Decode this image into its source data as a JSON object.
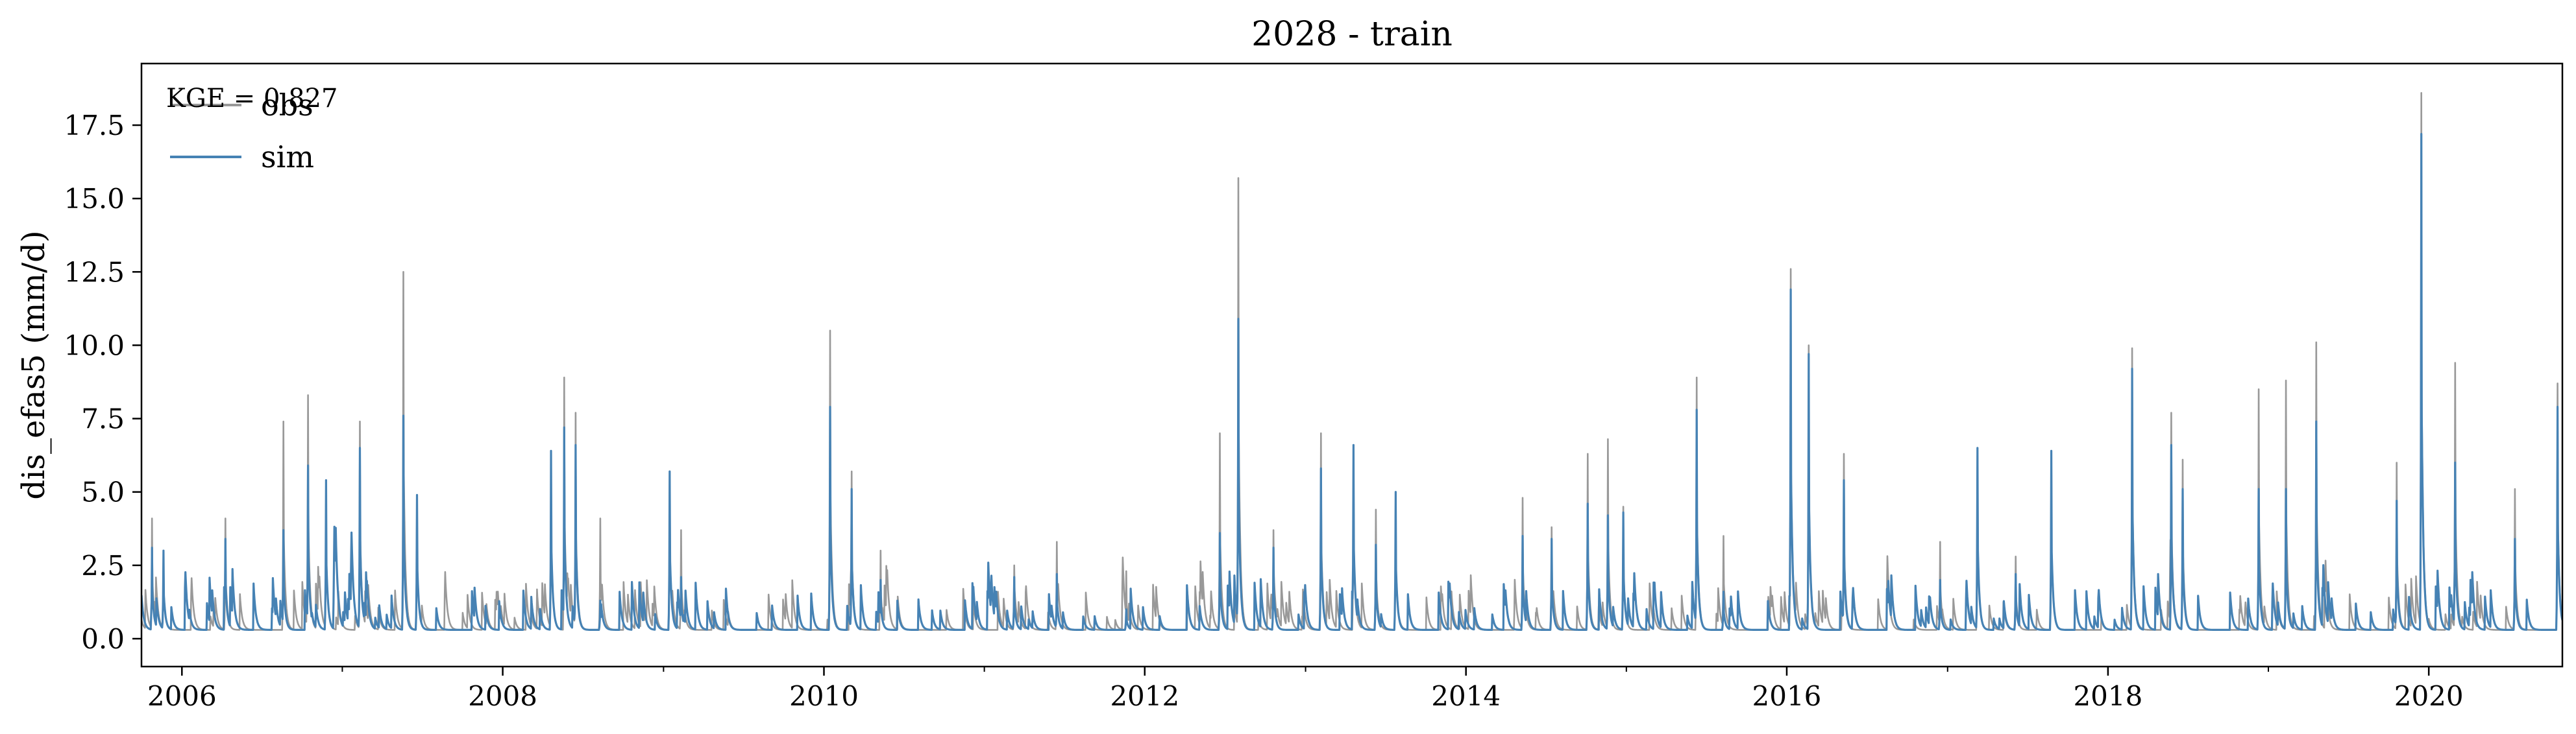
{
  "chart_data": {
    "type": "line",
    "title": "2028 - train",
    "xlabel": "",
    "ylabel": "dis_efas5 (mm/d)",
    "annotation": "KGE = 0.827",
    "xlim": [
      "2005-10-01",
      "2020-10-31"
    ],
    "ylim": [
      -0.95,
      19.6
    ],
    "x_ticks": [
      "2006",
      "2008",
      "2010",
      "2012",
      "2014",
      "2016",
      "2018",
      "2020"
    ],
    "y_ticks": [
      "0.0",
      "2.5",
      "5.0",
      "7.5",
      "10.0",
      "12.5",
      "15.0",
      "17.5"
    ],
    "legend": {
      "position": "top-left",
      "entries": [
        "obs",
        "sim"
      ]
    },
    "grid": false,
    "colors": {
      "obs": "#999999",
      "sim": "#4682b4"
    },
    "baseflow": 0.3,
    "series": [
      {
        "name": "obs",
        "peaks": [
          [
            "2005-10-25",
            4.1
          ],
          [
            "2005-11-20",
            3.0
          ],
          [
            "2006-04-10",
            4.1
          ],
          [
            "2006-08-20",
            7.4
          ],
          [
            "2006-10-15",
            8.3
          ],
          [
            "2006-11-25",
            5.4
          ],
          [
            "2007-02-10",
            7.4
          ],
          [
            "2007-05-20",
            12.5
          ],
          [
            "2007-06-20",
            4.9
          ],
          [
            "2008-04-20",
            6.4
          ],
          [
            "2008-05-20",
            8.9
          ],
          [
            "2008-06-15",
            7.7
          ],
          [
            "2008-08-10",
            4.1
          ],
          [
            "2009-01-15",
            5.7
          ],
          [
            "2009-02-10",
            3.7
          ],
          [
            "2010-01-15",
            10.5
          ],
          [
            "2010-03-05",
            5.7
          ],
          [
            "2010-05-10",
            3.0
          ],
          [
            "2011-03-10",
            2.5
          ],
          [
            "2011-06-15",
            3.3
          ],
          [
            "2011-11-20",
            2.3
          ],
          [
            "2012-06-20",
            7.0
          ],
          [
            "2012-08-01",
            15.7
          ],
          [
            "2012-10-20",
            3.7
          ],
          [
            "2013-02-05",
            7.0
          ],
          [
            "2013-04-20",
            6.6
          ],
          [
            "2013-06-10",
            4.4
          ],
          [
            "2013-07-25",
            5.0
          ],
          [
            "2014-05-10",
            4.8
          ],
          [
            "2014-07-15",
            3.8
          ],
          [
            "2014-10-05",
            6.3
          ],
          [
            "2014-11-20",
            6.8
          ],
          [
            "2014-12-25",
            4.5
          ],
          [
            "2015-06-10",
            8.9
          ],
          [
            "2015-08-10",
            3.5
          ],
          [
            "2016-01-10",
            12.6
          ],
          [
            "2016-02-20",
            10.0
          ],
          [
            "2016-05-10",
            6.3
          ],
          [
            "2016-12-15",
            3.3
          ],
          [
            "2017-03-10",
            6.5
          ],
          [
            "2017-06-05",
            2.8
          ],
          [
            "2017-08-25",
            6.4
          ],
          [
            "2018-02-25",
            9.9
          ],
          [
            "2018-05-25",
            7.7
          ],
          [
            "2018-06-20",
            6.1
          ],
          [
            "2018-12-10",
            8.5
          ],
          [
            "2019-02-10",
            8.8
          ],
          [
            "2019-04-20",
            10.1
          ],
          [
            "2019-10-20",
            6.0
          ],
          [
            "2019-12-15",
            18.6
          ],
          [
            "2020-03-01",
            9.4
          ],
          [
            "2020-07-15",
            5.1
          ],
          [
            "2020-10-20",
            8.7
          ]
        ]
      },
      {
        "name": "sim",
        "peaks": [
          [
            "2005-10-25",
            3.1
          ],
          [
            "2005-11-20",
            3.0
          ],
          [
            "2006-04-10",
            3.4
          ],
          [
            "2006-08-20",
            3.7
          ],
          [
            "2006-10-15",
            5.9
          ],
          [
            "2006-11-25",
            5.4
          ],
          [
            "2007-02-10",
            6.5
          ],
          [
            "2007-05-20",
            7.6
          ],
          [
            "2007-06-20",
            4.9
          ],
          [
            "2008-04-20",
            6.4
          ],
          [
            "2008-05-20",
            7.2
          ],
          [
            "2008-06-15",
            6.6
          ],
          [
            "2008-08-10",
            1.3
          ],
          [
            "2009-01-15",
            5.7
          ],
          [
            "2009-02-10",
            2.1
          ],
          [
            "2010-01-15",
            7.9
          ],
          [
            "2010-03-05",
            5.1
          ],
          [
            "2010-05-10",
            2.0
          ],
          [
            "2011-03-10",
            2.1
          ],
          [
            "2011-06-15",
            2.2
          ],
          [
            "2011-11-20",
            1.0
          ],
          [
            "2012-06-20",
            3.6
          ],
          [
            "2012-08-01",
            10.9
          ],
          [
            "2012-10-20",
            3.1
          ],
          [
            "2013-02-05",
            5.8
          ],
          [
            "2013-04-20",
            6.6
          ],
          [
            "2013-06-10",
            3.2
          ],
          [
            "2013-07-25",
            5.0
          ],
          [
            "2014-05-10",
            3.5
          ],
          [
            "2014-07-15",
            3.4
          ],
          [
            "2014-10-05",
            4.6
          ],
          [
            "2014-11-20",
            4.2
          ],
          [
            "2014-12-25",
            4.3
          ],
          [
            "2015-06-10",
            7.8
          ],
          [
            "2015-08-10",
            1.6
          ],
          [
            "2016-01-10",
            11.9
          ],
          [
            "2016-02-20",
            9.7
          ],
          [
            "2016-05-10",
            5.4
          ],
          [
            "2016-12-15",
            2.0
          ],
          [
            "2017-03-10",
            6.5
          ],
          [
            "2017-06-05",
            2.2
          ],
          [
            "2017-08-25",
            6.4
          ],
          [
            "2018-02-25",
            9.2
          ],
          [
            "2018-05-25",
            6.6
          ],
          [
            "2018-06-20",
            5.1
          ],
          [
            "2018-12-10",
            5.1
          ],
          [
            "2019-02-10",
            5.1
          ],
          [
            "2019-04-20",
            7.4
          ],
          [
            "2019-10-20",
            4.7
          ],
          [
            "2019-12-15",
            17.2
          ],
          [
            "2020-03-01",
            6.0
          ],
          [
            "2020-07-15",
            3.4
          ],
          [
            "2020-10-20",
            7.9
          ]
        ]
      }
    ]
  }
}
